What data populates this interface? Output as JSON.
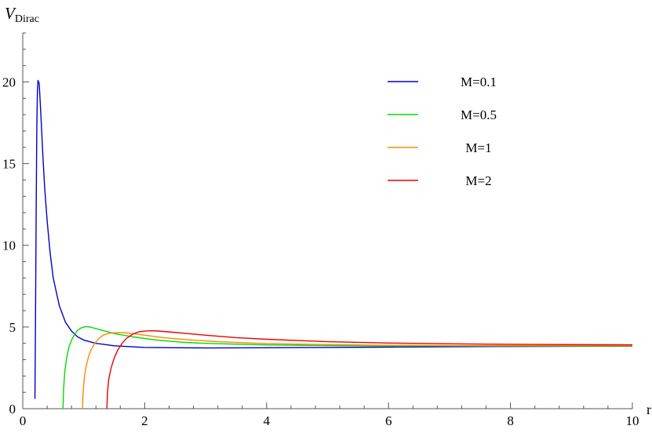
{
  "chart_data": {
    "type": "line",
    "title": "",
    "xlabel": "r",
    "ylabel_main": "V",
    "ylabel_sub": "Dirac",
    "xlim": [
      0,
      10
    ],
    "ylim": [
      0,
      23
    ],
    "x_ticks": [
      0,
      2,
      4,
      6,
      8,
      10
    ],
    "y_ticks": [
      0,
      5,
      10,
      15,
      20
    ],
    "grid": false,
    "legend_position": "top-right",
    "series": [
      {
        "name": "M=0.1",
        "color": "#0000cc",
        "x": [
          0.2,
          0.21,
          0.22,
          0.23,
          0.24,
          0.25,
          0.27,
          0.3,
          0.33,
          0.36,
          0.4,
          0.45,
          0.5,
          0.6,
          0.7,
          0.8,
          0.9,
          1.0,
          1.2,
          1.5,
          2.0,
          2.5,
          3.0,
          4.0,
          5.0,
          6.0,
          7.0,
          8.0,
          9.0,
          10.0
        ],
        "y": [
          0.6,
          6.0,
          12.0,
          17.0,
          19.4,
          20.1,
          19.9,
          17.8,
          15.5,
          13.5,
          11.5,
          9.5,
          8.0,
          6.3,
          5.3,
          4.75,
          4.4,
          4.2,
          4.0,
          3.85,
          3.75,
          3.73,
          3.72,
          3.73,
          3.75,
          3.77,
          3.79,
          3.81,
          3.82,
          3.83
        ]
      },
      {
        "name": "M=0.5",
        "color": "#00dd00",
        "x": [
          0.66,
          0.67,
          0.69,
          0.72,
          0.76,
          0.8,
          0.85,
          0.9,
          0.95,
          1.0,
          1.05,
          1.1,
          1.2,
          1.3,
          1.5,
          1.8,
          2.2,
          2.6,
          3.0,
          4.0,
          5.0,
          6.0,
          7.0,
          8.0,
          9.0,
          10.0
        ],
        "y": [
          0.0,
          1.2,
          2.3,
          3.1,
          3.8,
          4.2,
          4.55,
          4.8,
          4.93,
          5.0,
          5.02,
          5.0,
          4.9,
          4.8,
          4.6,
          4.4,
          4.2,
          4.07,
          4.0,
          3.9,
          3.86,
          3.84,
          3.84,
          3.84,
          3.84,
          3.84
        ]
      },
      {
        "name": "M=1",
        "color": "#ff8800",
        "x": [
          0.98,
          0.99,
          1.01,
          1.04,
          1.08,
          1.12,
          1.18,
          1.25,
          1.32,
          1.4,
          1.5,
          1.6,
          1.7,
          1.8,
          2.0,
          2.3,
          2.7,
          3.2,
          4.0,
          5.0,
          6.0,
          7.0,
          8.0,
          9.0,
          10.0
        ],
        "y": [
          0.0,
          1.0,
          1.9,
          2.6,
          3.2,
          3.6,
          4.0,
          4.3,
          4.5,
          4.6,
          4.65,
          4.66,
          4.64,
          4.6,
          4.5,
          4.35,
          4.22,
          4.1,
          3.98,
          3.92,
          3.88,
          3.86,
          3.86,
          3.86,
          3.86
        ]
      },
      {
        "name": "M=2",
        "color": "#ee0000",
        "x": [
          1.38,
          1.39,
          1.41,
          1.45,
          1.5,
          1.56,
          1.63,
          1.7,
          1.8,
          1.9,
          2.0,
          2.1,
          2.2,
          2.4,
          2.7,
          3.0,
          3.5,
          4.0,
          5.0,
          6.0,
          7.0,
          8.0,
          9.0,
          10.0
        ],
        "y": [
          0.0,
          1.0,
          1.8,
          2.5,
          3.1,
          3.6,
          4.0,
          4.3,
          4.55,
          4.7,
          4.75,
          4.77,
          4.76,
          4.7,
          4.6,
          4.5,
          4.35,
          4.25,
          4.1,
          4.02,
          3.97,
          3.94,
          3.92,
          3.91
        ]
      }
    ]
  }
}
